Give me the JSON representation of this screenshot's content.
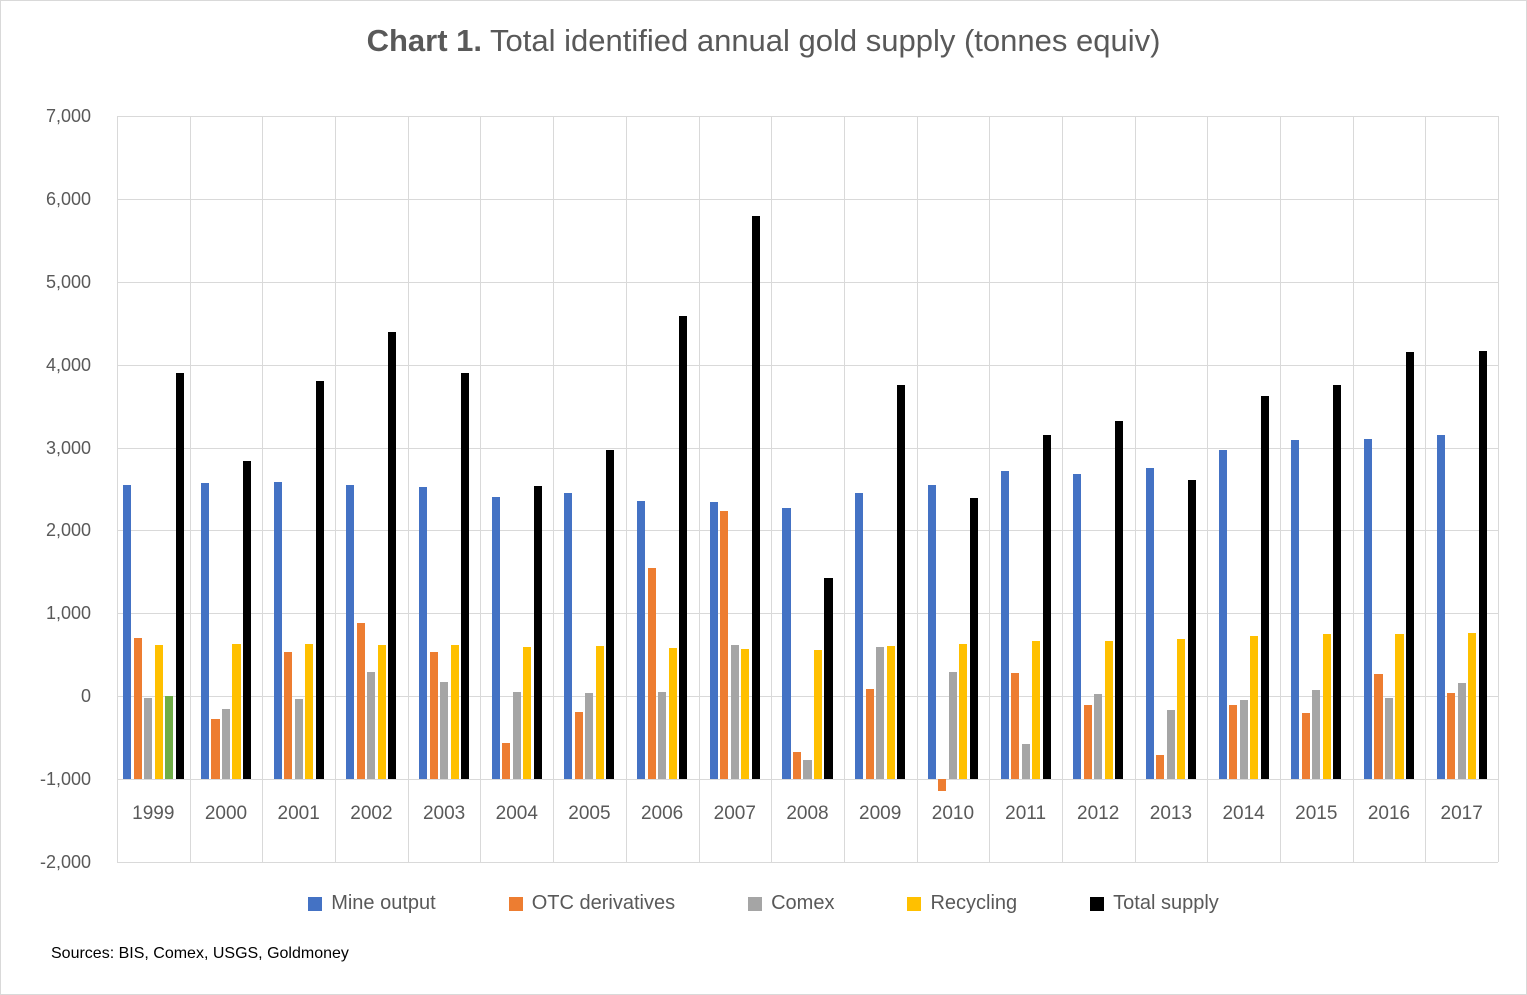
{
  "title": {
    "prefix": "Chart 1.",
    "rest": " Total identified annual gold supply (tonnes equiv)"
  },
  "source_note": "Sources: BIS, Comex, USGS, Goldmoney",
  "colors": {
    "mine_output": "#4472C4",
    "otc_derivatives": "#ED7D31",
    "comex": "#A5A5A5",
    "recycling": "#FFC000",
    "unlabeled_green": "#70AD47",
    "total_supply": "#000000",
    "gridline": "#D9D9D9",
    "axis_text": "#595959",
    "title_text": "#595959"
  },
  "chart_data": {
    "type": "bar",
    "title": "Chart 1. Total identified annual gold supply (tonnes equiv)",
    "xlabel": "",
    "ylabel": "",
    "ylim": [
      -2000,
      7000
    ],
    "y_step": 1000,
    "bar_baseline": -1000,
    "grid": true,
    "legend_position": "bottom",
    "y_ticks": [
      "7,000",
      "6,000",
      "5,000",
      "4,000",
      "3,000",
      "2,000",
      "1,000",
      "0",
      "-1,000",
      "-2,000"
    ],
    "y_tick_values": [
      7000,
      6000,
      5000,
      4000,
      3000,
      2000,
      1000,
      0,
      -1000,
      -2000
    ],
    "categories": [
      "1999",
      "2000",
      "2001",
      "2002",
      "2003",
      "2004",
      "2005",
      "2006",
      "2007",
      "2008",
      "2009",
      "2010",
      "2011",
      "2012",
      "2013",
      "2014",
      "2015",
      "2016",
      "2017"
    ],
    "series": [
      {
        "name": "Mine output",
        "slug": "mine-output",
        "color": "#4472C4",
        "in_legend": true,
        "values": [
          2550,
          2575,
          2585,
          2550,
          2530,
          2405,
          2450,
          2355,
          2345,
          2275,
          2450,
          2550,
          2715,
          2685,
          2755,
          2975,
          3095,
          3105,
          3150
        ]
      },
      {
        "name": "OTC derivatives",
        "slug": "otc-derivatives",
        "color": "#ED7D31",
        "in_legend": true,
        "values": [
          700,
          -275,
          540,
          880,
          530,
          -565,
          -185,
          1550,
          2230,
          -670,
          90,
          -1140,
          275,
          -100,
          -710,
          -100,
          -205,
          265,
          45
        ]
      },
      {
        "name": "Comex",
        "slug": "comex",
        "color": "#A5A5A5",
        "in_legend": true,
        "values": [
          -25,
          -150,
          -30,
          295,
          175,
          55,
          35,
          50,
          615,
          -770,
          590,
          295,
          -570,
          25,
          -170,
          -40,
          75,
          -15,
          155
        ]
      },
      {
        "name": "Recycling",
        "slug": "recycling",
        "color": "#FFC000",
        "in_legend": true,
        "values": [
          615,
          635,
          625,
          620,
          615,
          595,
          605,
          580,
          570,
          555,
          605,
          625,
          665,
          670,
          690,
          730,
          750,
          750,
          765
        ]
      },
      {
        "name": "",
        "slug": "unlabeled-green",
        "color": "#70AD47",
        "in_legend": false,
        "values": [
          5,
          null,
          null,
          null,
          null,
          null,
          null,
          null,
          null,
          null,
          null,
          null,
          null,
          null,
          null,
          null,
          null,
          null,
          null
        ]
      },
      {
        "name": "Total supply",
        "slug": "total-supply",
        "color": "#000000",
        "in_legend": true,
        "values": [
          3895,
          2840,
          3800,
          4395,
          3905,
          2540,
          2975,
          4590,
          5790,
          1425,
          3760,
          2390,
          3150,
          3320,
          2605,
          3620,
          3750,
          4155,
          4165
        ]
      }
    ]
  }
}
